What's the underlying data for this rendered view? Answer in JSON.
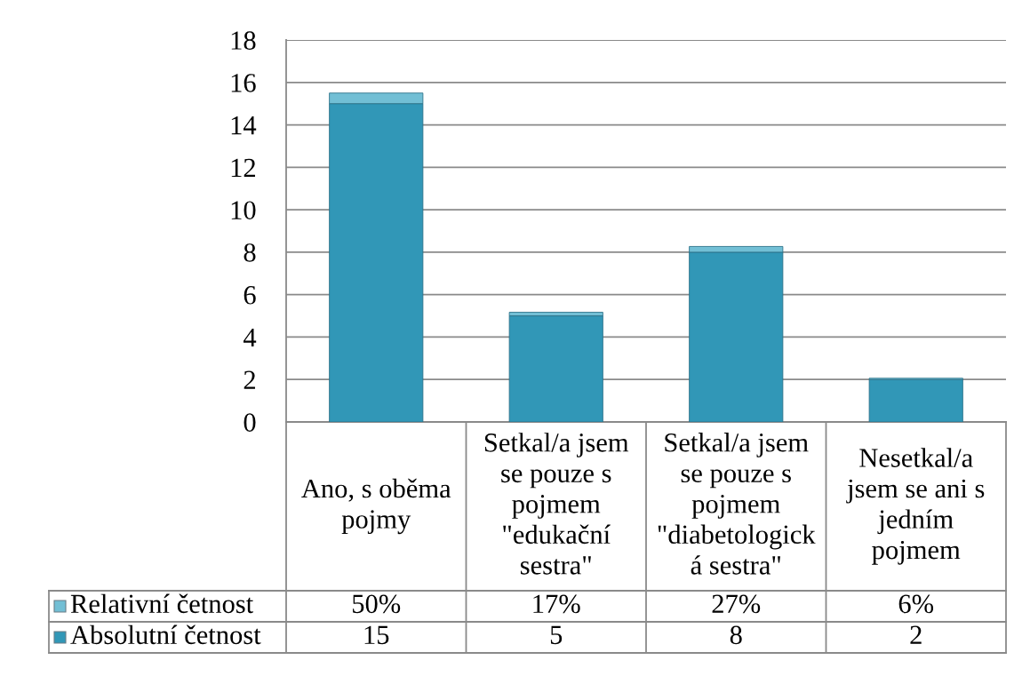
{
  "chart_data": {
    "type": "bar",
    "stacked": true,
    "categories": [
      "Ano, s oběma\npojmy",
      "Setkal/a jsem\nse pouze s\npojmem\n\"edukační\nsestra\"",
      "Setkal/a jsem\nse pouze s\npojmem\n\"diabetologick\ná sestra\"",
      "Nesetkal/a\njsem se ani s\njedním\npojmem"
    ],
    "series": [
      {
        "name": "Absolutní četnost",
        "color": "#3197b7",
        "values": [
          15,
          5,
          8,
          2
        ],
        "value_labels": [
          "15",
          "5",
          "8",
          "2"
        ]
      },
      {
        "name": "Relativní četnost",
        "color": "#72bfd5",
        "values": [
          0.5,
          0.17,
          0.27,
          0.06
        ],
        "value_labels": [
          "50%",
          "17%",
          "27%",
          "6%"
        ]
      }
    ],
    "ylim": [
      0,
      18
    ],
    "yticks": [
      0,
      2,
      4,
      6,
      8,
      10,
      12,
      14,
      16,
      18
    ],
    "grid": "y",
    "legend": "bottom left"
  }
}
